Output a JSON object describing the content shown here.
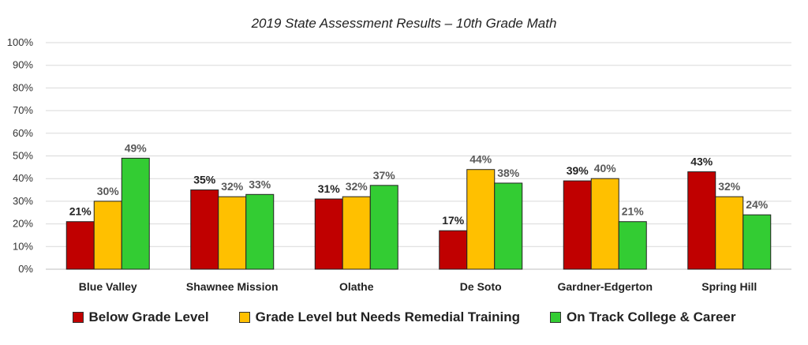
{
  "chart_data": {
    "type": "bar",
    "title": "2019 State Assessment Results – 10th Grade Math",
    "categories": [
      "Blue Valley",
      "Shawnee Mission",
      "Olathe",
      "De Soto",
      "Gardner-Edgerton",
      "Spring Hill"
    ],
    "series": [
      {
        "name": "Below Grade Level",
        "values": [
          21,
          35,
          31,
          17,
          39,
          43
        ],
        "color": "#c00000",
        "label_color": "#222222"
      },
      {
        "name": "Grade Level but Needs Remedial Training",
        "values": [
          30,
          32,
          32,
          44,
          40,
          32
        ],
        "color": "#ffc000",
        "label_color": "#595959"
      },
      {
        "name": "On Track College & Career",
        "values": [
          49,
          33,
          37,
          38,
          21,
          24
        ],
        "color": "#33cc33",
        "label_color": "#595959"
      }
    ],
    "data_labels": [
      [
        "21%",
        "35%",
        "31%",
        "17%",
        "39%",
        "43%"
      ],
      [
        "30%",
        "32%",
        "32%",
        "44%",
        "40%",
        "32%"
      ],
      [
        "49%",
        "33%",
        "37%",
        "38%",
        "21%",
        "24%"
      ]
    ],
    "yticks": [
      "0%",
      "10%",
      "20%",
      "30%",
      "40%",
      "50%",
      "60%",
      "70%",
      "80%",
      "90%",
      "100%"
    ],
    "ylim": [
      0,
      100
    ],
    "xlabel": "",
    "ylabel": "",
    "grid": true,
    "legend_position": "bottom"
  }
}
